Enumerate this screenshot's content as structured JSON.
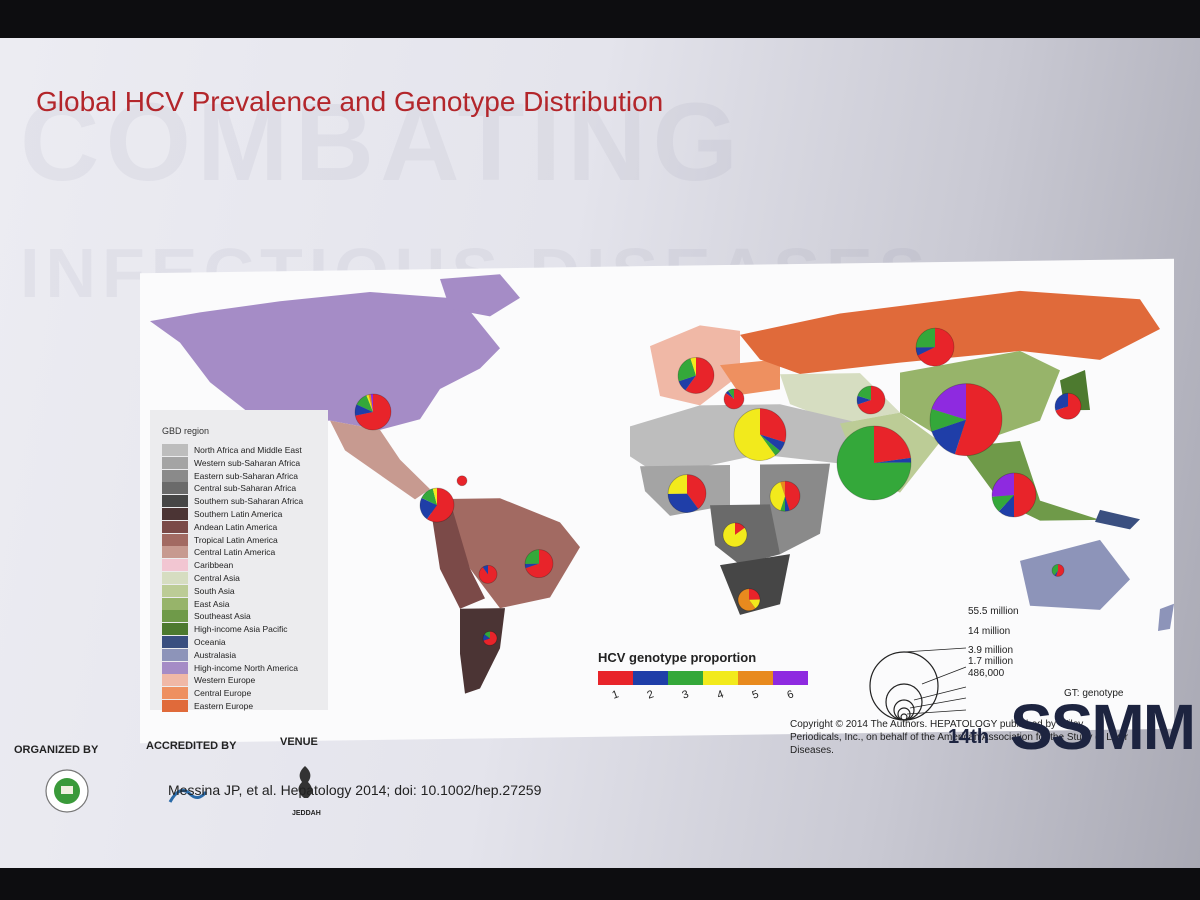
{
  "slide": {
    "title": "Global HCV Prevalence and Genotype Distribution",
    "watermark_lines": [
      "COMBATING",
      "INFECTIOUS DISEASES"
    ]
  },
  "legend": {
    "title": "GBD region",
    "regions": [
      {
        "name": "North Africa and Middle East",
        "color": "#bdbdbd"
      },
      {
        "name": "Western sub-Saharan Africa",
        "color": "#a4a4a4"
      },
      {
        "name": "Eastern sub-Saharan Africa",
        "color": "#8a8a8a"
      },
      {
        "name": "Central sub-Saharan Africa",
        "color": "#6a6a6a"
      },
      {
        "name": "Southern sub-Saharan Africa",
        "color": "#464646"
      },
      {
        "name": "Southern Latin America",
        "color": "#4b3434"
      },
      {
        "name": "Andean Latin America",
        "color": "#7b4a48"
      },
      {
        "name": "Tropical Latin America",
        "color": "#a26a62"
      },
      {
        "name": "Central Latin America",
        "color": "#c79a90"
      },
      {
        "name": "Caribbean",
        "color": "#f2c6d2"
      },
      {
        "name": "Central Asia",
        "color": "#d6ddc1"
      },
      {
        "name": "South Asia",
        "color": "#bccc96"
      },
      {
        "name": "East Asia",
        "color": "#97b46a"
      },
      {
        "name": "Southeast Asia",
        "color": "#6f9a49"
      },
      {
        "name": "High-income Asia Pacific",
        "color": "#4d7a2f"
      },
      {
        "name": "Oceania",
        "color": "#3a4f80"
      },
      {
        "name": "Australasia",
        "color": "#8d94b9"
      },
      {
        "name": "High-income North America",
        "color": "#a58cc6"
      },
      {
        "name": "Western Europe",
        "color": "#f0b8a6"
      },
      {
        "name": "Central Europe",
        "color": "#ee9060"
      },
      {
        "name": "Eastern Europe",
        "color": "#e06a3a"
      }
    ]
  },
  "genotype_legend": {
    "title": "HCV genotype proportion",
    "genotypes": [
      {
        "label": "1",
        "color": "#e8242a"
      },
      {
        "label": "2",
        "color": "#1f3ea8"
      },
      {
        "label": "3",
        "color": "#34a83a"
      },
      {
        "label": "4",
        "color": "#f2ea1c"
      },
      {
        "label": "5",
        "color": "#e88a1e"
      },
      {
        "label": "6",
        "color": "#8e2ae0"
      }
    ]
  },
  "size_legend": {
    "labels": [
      "55.5 million",
      "14 million",
      "3.9 million",
      "1.7 million",
      "486,000"
    ]
  },
  "pies": [
    {
      "region": "High-income North America",
      "slices": [
        0.72,
        0.1,
        0.12,
        0.02,
        0.02,
        0.02
      ]
    },
    {
      "region": "Caribbean",
      "slices": [
        1,
        0,
        0,
        0,
        0,
        0
      ]
    },
    {
      "region": "Central Latin America",
      "slices": [
        0.6,
        0.22,
        0.14,
        0.04,
        0,
        0
      ]
    },
    {
      "region": "Tropical Latin America",
      "slices": [
        0.7,
        0.05,
        0.25,
        0,
        0,
        0
      ]
    },
    {
      "region": "Andean Latin America",
      "slices": [
        0.9,
        0.1,
        0,
        0,
        0,
        0
      ]
    },
    {
      "region": "Southern Latin America",
      "slices": [
        0.7,
        0.15,
        0.15,
        0,
        0,
        0
      ]
    },
    {
      "region": "Western Europe",
      "slices": [
        0.6,
        0.1,
        0.25,
        0.05,
        0,
        0
      ]
    },
    {
      "region": "Central Europe",
      "slices": [
        0.85,
        0.05,
        0.1,
        0,
        0,
        0
      ]
    },
    {
      "region": "Eastern Europe",
      "slices": [
        0.68,
        0.07,
        0.25,
        0,
        0,
        0
      ]
    },
    {
      "region": "North Africa and Middle East",
      "slices": [
        0.3,
        0.06,
        0.04,
        0.6,
        0,
        0
      ]
    },
    {
      "region": "Western sub-Saharan Africa",
      "slices": [
        0.4,
        0.35,
        0,
        0.25,
        0,
        0
      ]
    },
    {
      "region": "Eastern sub-Saharan Africa",
      "slices": [
        0.45,
        0.05,
        0.05,
        0.4,
        0.05,
        0
      ]
    },
    {
      "region": "Central sub-Saharan Africa",
      "slices": [
        0.15,
        0,
        0,
        0.85,
        0,
        0
      ]
    },
    {
      "region": "Southern sub-Saharan Africa",
      "slices": [
        0.25,
        0,
        0,
        0.15,
        0.6,
        0
      ]
    },
    {
      "region": "Central Asia",
      "slices": [
        0.7,
        0.1,
        0.2,
        0,
        0,
        0
      ]
    },
    {
      "region": "South Asia",
      "slices": [
        0.23,
        0.02,
        0.75,
        0,
        0,
        0
      ]
    },
    {
      "region": "East Asia",
      "slices": [
        0.55,
        0.15,
        0.1,
        0,
        0,
        0.2
      ]
    },
    {
      "region": "High-income Asia Pacific",
      "slices": [
        0.7,
        0.3,
        0,
        0,
        0,
        0
      ]
    },
    {
      "region": "Southeast Asia",
      "slices": [
        0.5,
        0.12,
        0.12,
        0,
        0,
        0.26
      ]
    },
    {
      "region": "Australasia",
      "slices": [
        0.55,
        0.05,
        0.4,
        0,
        0,
        0
      ]
    }
  ],
  "copyright": "Copyright © 2014 The Authors. HEPATOLOGY published by Wiley Periodicals, Inc., on behalf of the American Association for the Study of Liver Diseases.",
  "citation": "Messina JP, et al. Hepatology 2014; doi: 10.1002/hep.27259",
  "footer": {
    "organized_by": "ORGANIZED BY",
    "accredited_by": "ACCREDITED BY",
    "venue": "VENUE",
    "venue_name": "JEDDAH",
    "event_edition": "14th",
    "event_name": "SSMM",
    "gt_text": "GT: genotype"
  }
}
